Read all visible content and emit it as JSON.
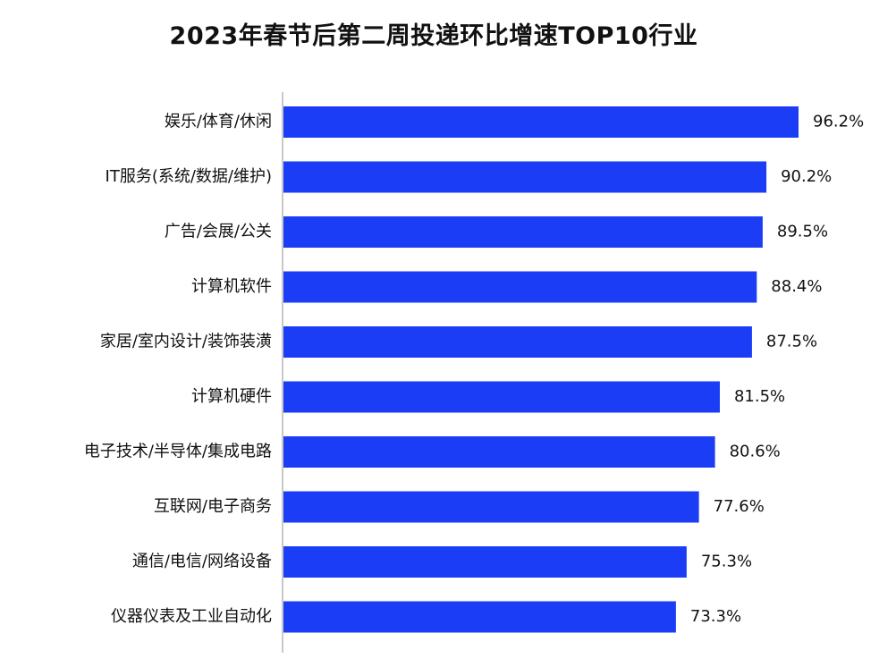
{
  "chart_data": {
    "type": "bar",
    "orientation": "horizontal",
    "title": "2023年春节后第二周投递环比增速TOP10行业",
    "categories": [
      "娱乐/体育/休闲",
      "IT服务(系统/数据/维护)",
      "广告/会展/公关",
      "计算机软件",
      "家居/室内设计/装饰装潢",
      "计算机硬件",
      "电子技术/半导体/集成电路",
      "互联网/电子商务",
      "通信/电信/网络设备",
      "仪器仪表及工业自动化"
    ],
    "values": [
      96.2,
      90.2,
      89.5,
      88.4,
      87.5,
      81.5,
      80.6,
      77.6,
      75.3,
      73.3
    ],
    "value_labels": [
      "96.2%",
      "90.2%",
      "89.5%",
      "88.4%",
      "87.5%",
      "81.5%",
      "80.6%",
      "77.6%",
      "75.3%",
      "73.3%"
    ],
    "unit": "%",
    "bar_color": "#1a3df5",
    "axis_color": "#c8c8c8",
    "grid": false,
    "legend": "none"
  }
}
